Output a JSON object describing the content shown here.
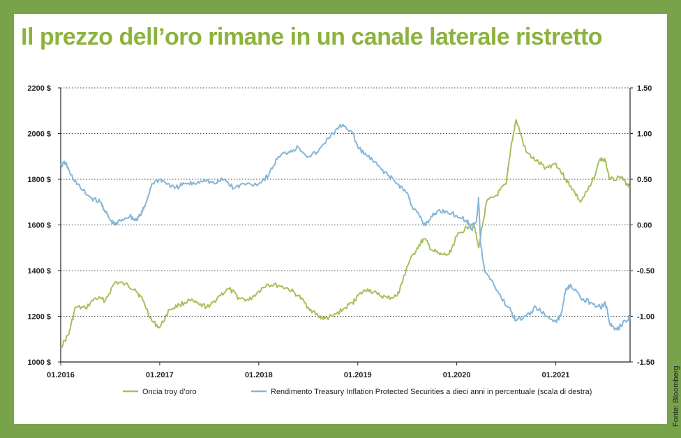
{
  "title": "Il prezzo dell’oro rimane in un canale laterale ristretto",
  "source": "Fonte: Bloomberg",
  "colors": {
    "gold": "#a6c05a",
    "tips": "#86b6d6",
    "frame": "#78a34a",
    "title": "#8cb33d"
  },
  "chart_data": {
    "type": "line",
    "title": "Il prezzo dell’oro rimane in un canale laterale ristretto",
    "x_range": [
      2016.0,
      2021.75
    ],
    "x_ticks": [
      2016,
      2017,
      2018,
      2019,
      2020,
      2021
    ],
    "x_tick_labels": [
      "01.2016",
      "01.2017",
      "01.2018",
      "01.2019",
      "01.2020",
      "01.2021"
    ],
    "y_left": {
      "range": [
        1000,
        2200
      ],
      "ticks": [
        1000,
        1200,
        1400,
        1600,
        1800,
        2000,
        2200
      ],
      "tick_labels": [
        "1000 $",
        "1200 $",
        "1400 $",
        "1600 $",
        "1800 $",
        "2000 $",
        "2200 $"
      ]
    },
    "y_right": {
      "range": [
        -1.5,
        1.5
      ],
      "ticks": [
        -1.5,
        -1.0,
        -0.5,
        0.0,
        0.5,
        1.0,
        1.5
      ],
      "tick_labels": [
        "-1.50",
        "-1.00",
        "-0.50",
        "0.00",
        "0.50",
        "1.00",
        "1.50"
      ]
    },
    "grid": "horizontal dotted",
    "series": [
      {
        "name": "Oncia troy d’oro",
        "axis": "left",
        "points": [
          [
            2016.0,
            1065
          ],
          [
            2016.08,
            1120
          ],
          [
            2016.15,
            1240
          ],
          [
            2016.25,
            1235
          ],
          [
            2016.35,
            1280
          ],
          [
            2016.45,
            1270
          ],
          [
            2016.55,
            1350
          ],
          [
            2016.65,
            1340
          ],
          [
            2016.75,
            1320
          ],
          [
            2016.83,
            1270
          ],
          [
            2016.92,
            1180
          ],
          [
            2017.0,
            1150
          ],
          [
            2017.1,
            1230
          ],
          [
            2017.2,
            1250
          ],
          [
            2017.3,
            1270
          ],
          [
            2017.4,
            1250
          ],
          [
            2017.5,
            1240
          ],
          [
            2017.6,
            1290
          ],
          [
            2017.7,
            1320
          ],
          [
            2017.8,
            1280
          ],
          [
            2017.9,
            1270
          ],
          [
            2018.0,
            1310
          ],
          [
            2018.08,
            1340
          ],
          [
            2018.2,
            1335
          ],
          [
            2018.3,
            1320
          ],
          [
            2018.4,
            1290
          ],
          [
            2018.5,
            1240
          ],
          [
            2018.6,
            1200
          ],
          [
            2018.67,
            1190
          ],
          [
            2018.75,
            1200
          ],
          [
            2018.85,
            1230
          ],
          [
            2018.95,
            1260
          ],
          [
            2019.0,
            1290
          ],
          [
            2019.1,
            1320
          ],
          [
            2019.2,
            1295
          ],
          [
            2019.3,
            1280
          ],
          [
            2019.4,
            1290
          ],
          [
            2019.45,
            1350
          ],
          [
            2019.5,
            1420
          ],
          [
            2019.6,
            1500
          ],
          [
            2019.67,
            1540
          ],
          [
            2019.75,
            1490
          ],
          [
            2019.83,
            1470
          ],
          [
            2019.92,
            1470
          ],
          [
            2020.0,
            1550
          ],
          [
            2020.1,
            1590
          ],
          [
            2020.17,
            1610
          ],
          [
            2020.22,
            1500
          ],
          [
            2020.3,
            1700
          ],
          [
            2020.4,
            1730
          ],
          [
            2020.5,
            1780
          ],
          [
            2020.55,
            1950
          ],
          [
            2020.6,
            2060
          ],
          [
            2020.7,
            1920
          ],
          [
            2020.8,
            1880
          ],
          [
            2020.9,
            1850
          ],
          [
            2021.0,
            1870
          ],
          [
            2021.1,
            1800
          ],
          [
            2021.15,
            1770
          ],
          [
            2021.25,
            1700
          ],
          [
            2021.35,
            1770
          ],
          [
            2021.45,
            1890
          ],
          [
            2021.5,
            1880
          ],
          [
            2021.55,
            1800
          ],
          [
            2021.65,
            1810
          ],
          [
            2021.72,
            1780
          ],
          [
            2021.75,
            1770
          ]
        ]
      },
      {
        "name": "Rendimento Treasury Inflation Protected Securities a dieci anni in percentuale (scala di destra)",
        "axis": "right",
        "points": [
          [
            2016.0,
            0.65
          ],
          [
            2016.05,
            0.68
          ],
          [
            2016.1,
            0.55
          ],
          [
            2016.2,
            0.4
          ],
          [
            2016.3,
            0.3
          ],
          [
            2016.4,
            0.25
          ],
          [
            2016.45,
            0.15
          ],
          [
            2016.5,
            0.05
          ],
          [
            2016.55,
            0.0
          ],
          [
            2016.6,
            0.05
          ],
          [
            2016.7,
            0.1
          ],
          [
            2016.75,
            0.05
          ],
          [
            2016.8,
            0.1
          ],
          [
            2016.85,
            0.2
          ],
          [
            2016.92,
            0.45
          ],
          [
            2017.0,
            0.5
          ],
          [
            2017.08,
            0.45
          ],
          [
            2017.15,
            0.4
          ],
          [
            2017.25,
            0.45
          ],
          [
            2017.35,
            0.45
          ],
          [
            2017.45,
            0.5
          ],
          [
            2017.55,
            0.45
          ],
          [
            2017.65,
            0.5
          ],
          [
            2017.75,
            0.4
          ],
          [
            2017.85,
            0.45
          ],
          [
            2018.0,
            0.45
          ],
          [
            2018.1,
            0.55
          ],
          [
            2018.2,
            0.75
          ],
          [
            2018.3,
            0.8
          ],
          [
            2018.4,
            0.85
          ],
          [
            2018.5,
            0.75
          ],
          [
            2018.6,
            0.8
          ],
          [
            2018.7,
            0.95
          ],
          [
            2018.8,
            1.05
          ],
          [
            2018.85,
            1.1
          ],
          [
            2018.95,
            1.0
          ],
          [
            2019.0,
            0.85
          ],
          [
            2019.1,
            0.75
          ],
          [
            2019.2,
            0.65
          ],
          [
            2019.3,
            0.55
          ],
          [
            2019.4,
            0.45
          ],
          [
            2019.5,
            0.35
          ],
          [
            2019.55,
            0.2
          ],
          [
            2019.62,
            0.1
          ],
          [
            2019.67,
            0.0
          ],
          [
            2019.72,
            0.05
          ],
          [
            2019.8,
            0.15
          ],
          [
            2019.9,
            0.15
          ],
          [
            2020.0,
            0.1
          ],
          [
            2020.1,
            0.05
          ],
          [
            2020.15,
            -0.05
          ],
          [
            2020.2,
            0.05
          ],
          [
            2020.22,
            0.3
          ],
          [
            2020.24,
            -0.2
          ],
          [
            2020.28,
            -0.5
          ],
          [
            2020.35,
            -0.6
          ],
          [
            2020.45,
            -0.8
          ],
          [
            2020.55,
            -0.95
          ],
          [
            2020.6,
            -1.05
          ],
          [
            2020.7,
            -1.0
          ],
          [
            2020.8,
            -0.9
          ],
          [
            2020.9,
            -1.0
          ],
          [
            2021.0,
            -1.05
          ],
          [
            2021.05,
            -1.0
          ],
          [
            2021.1,
            -0.7
          ],
          [
            2021.15,
            -0.65
          ],
          [
            2021.25,
            -0.8
          ],
          [
            2021.35,
            -0.85
          ],
          [
            2021.45,
            -0.9
          ],
          [
            2021.5,
            -0.85
          ],
          [
            2021.55,
            -1.1
          ],
          [
            2021.62,
            -1.15
          ],
          [
            2021.7,
            -1.05
          ],
          [
            2021.75,
            -1.0
          ]
        ]
      }
    ],
    "legend": [
      "Oncia troy d’oro",
      "Rendimento Treasury Inflation Protected Securities a dieci anni in percentuale (scala di destra)"
    ],
    "legend_position": "bottom"
  }
}
